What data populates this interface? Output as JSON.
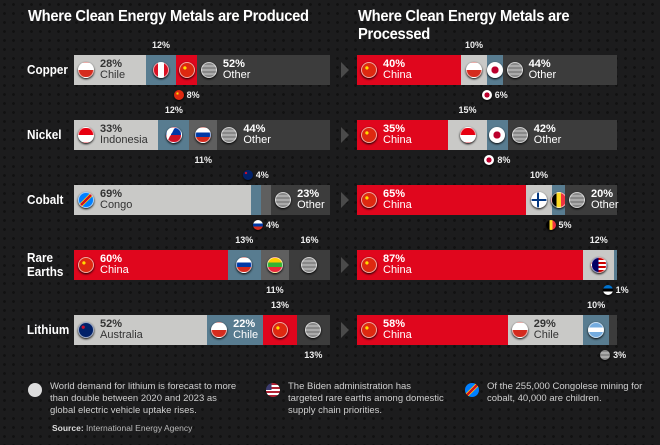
{
  "titles": {
    "produced": "Where Clean Energy Metals are Produced",
    "processed": "Where Clean Energy Metals are Processed"
  },
  "colors": {
    "red": "#e0061d",
    "light": "#c9c9c7",
    "blue": "#587c90",
    "mid": "#5f5f5f",
    "dark": "#3c3c3c"
  },
  "chart_data": {
    "type": "bar",
    "stacked": true,
    "unit": "%",
    "metals": [
      {
        "name": "Copper",
        "produced": [
          {
            "country": "Chile",
            "value": 28,
            "color": "light",
            "flag": "cl",
            "label": "inside"
          },
          {
            "country": "Peru",
            "value": 12,
            "color": "blue",
            "flag": "pe",
            "label": "above"
          },
          {
            "country": "China",
            "value": 8,
            "color": "red",
            "flag": "cn",
            "label": "below",
            "ext_flag": true
          },
          {
            "country": "Other",
            "value": 52,
            "color": "dark",
            "flag": "other",
            "label": "inside"
          }
        ],
        "processed": [
          {
            "country": "China",
            "value": 40,
            "color": "red",
            "flag": "cn",
            "label": "inside"
          },
          {
            "country": "Chile",
            "value": 10,
            "color": "light",
            "flag": "cl",
            "label": "above"
          },
          {
            "country": "Japan",
            "value": 6,
            "color": "blue",
            "flag": "jp",
            "label": "below",
            "ext_flag": true
          },
          {
            "country": "Other",
            "value": 44,
            "color": "dark",
            "flag": "other",
            "label": "inside"
          }
        ]
      },
      {
        "name": "Nickel",
        "produced": [
          {
            "country": "Indonesia",
            "value": 33,
            "color": "light",
            "flag": "id",
            "label": "inside"
          },
          {
            "country": "Philippines",
            "value": 12,
            "color": "blue",
            "flag": "ph",
            "label": "above"
          },
          {
            "country": "Russia",
            "value": 11,
            "color": "mid",
            "flag": "ru",
            "label": "below"
          },
          {
            "country": "Other",
            "value": 44,
            "color": "dark",
            "flag": "other",
            "label": "inside"
          }
        ],
        "processed": [
          {
            "country": "China",
            "value": 35,
            "color": "red",
            "flag": "cn",
            "label": "inside"
          },
          {
            "country": "Indonesia",
            "value": 15,
            "color": "light",
            "flag": "id",
            "label": "above"
          },
          {
            "country": "Japan",
            "value": 8,
            "color": "blue",
            "flag": "jp",
            "label": "below",
            "ext_flag": true
          },
          {
            "country": "Other",
            "value": 42,
            "color": "dark",
            "flag": "other",
            "label": "inside"
          }
        ]
      },
      {
        "name": "Cobalt",
        "produced": [
          {
            "country": "Congo",
            "value": 69,
            "color": "light",
            "flag": "cd",
            "label": "inside"
          },
          {
            "country": "Australia",
            "value": 4,
            "color": "blue",
            "flag": "au",
            "label": "above",
            "ext_flag": true
          },
          {
            "country": "Russia",
            "value": 4,
            "color": "mid",
            "flag": "ru",
            "label": "below",
            "ext_flag": true
          },
          {
            "country": "Other",
            "value": 23,
            "color": "dark",
            "flag": "other",
            "label": "inside"
          }
        ],
        "processed": [
          {
            "country": "China",
            "value": 65,
            "color": "red",
            "flag": "cn",
            "label": "inside"
          },
          {
            "country": "Finland",
            "value": 10,
            "color": "light",
            "flag": "fi",
            "label": "above"
          },
          {
            "country": "Belgium",
            "value": 5,
            "color": "blue",
            "flag": "be",
            "label": "below",
            "ext_flag": true
          },
          {
            "country": "Other",
            "value": 20,
            "color": "dark",
            "flag": "other",
            "label": "inside"
          }
        ]
      },
      {
        "name": "Rare Earths",
        "produced": [
          {
            "country": "China",
            "value": 60,
            "color": "red",
            "flag": "cn",
            "label": "inside"
          },
          {
            "country": "Russia",
            "value": 13,
            "color": "blue",
            "flag": "ru",
            "label": "above"
          },
          {
            "country": "Myanmar",
            "value": 11,
            "color": "mid",
            "flag": "mm",
            "label": "below"
          },
          {
            "country": "Other",
            "value": 16,
            "color": "dark",
            "flag": "other",
            "label": "above"
          }
        ],
        "processed": [
          {
            "country": "China",
            "value": 87,
            "color": "red",
            "flag": "cn",
            "label": "inside"
          },
          {
            "country": "Malaysia",
            "value": 12,
            "color": "light",
            "flag": "my",
            "label": "above"
          },
          {
            "country": "Estonia",
            "value": 1,
            "color": "blue",
            "flag": "ee",
            "label": "below",
            "ext_flag": true
          }
        ]
      },
      {
        "name": "Lithium",
        "produced": [
          {
            "country": "Australia",
            "value": 52,
            "color": "light",
            "flag": "au",
            "label": "inside"
          },
          {
            "country": "Chile",
            "value": 22,
            "color": "blue",
            "flag": "cl",
            "label": "inside"
          },
          {
            "country": "China",
            "value": 13,
            "color": "red",
            "flag": "cn",
            "label": "above"
          },
          {
            "country": "Other",
            "value": 13,
            "color": "dark",
            "flag": "other",
            "label": "below"
          }
        ],
        "processed": [
          {
            "country": "China",
            "value": 58,
            "color": "red",
            "flag": "cn",
            "label": "inside"
          },
          {
            "country": "Chile",
            "value": 29,
            "color": "light",
            "flag": "cl",
            "label": "inside"
          },
          {
            "country": "Argentina",
            "value": 10,
            "color": "blue",
            "flag": "ar",
            "label": "above"
          },
          {
            "country": "Other",
            "value": 3,
            "color": "dark",
            "flag": "other",
            "label": "below",
            "ext_flag": true
          }
        ]
      }
    ]
  },
  "notes": [
    {
      "icon": "li",
      "text": "World demand for lithium is forecast to more than double between 2020 and 2023 as global electric vehicle uptake rises."
    },
    {
      "icon": "us",
      "text": "The Biden administration has targeted rare earths among domestic supply chain priorities."
    },
    {
      "icon": "cd",
      "text": "Of the 255,000 Congolese mining for cobalt, 40,000 are children."
    }
  ],
  "source": {
    "label": "Source:",
    "text": "International Energy Agency"
  }
}
